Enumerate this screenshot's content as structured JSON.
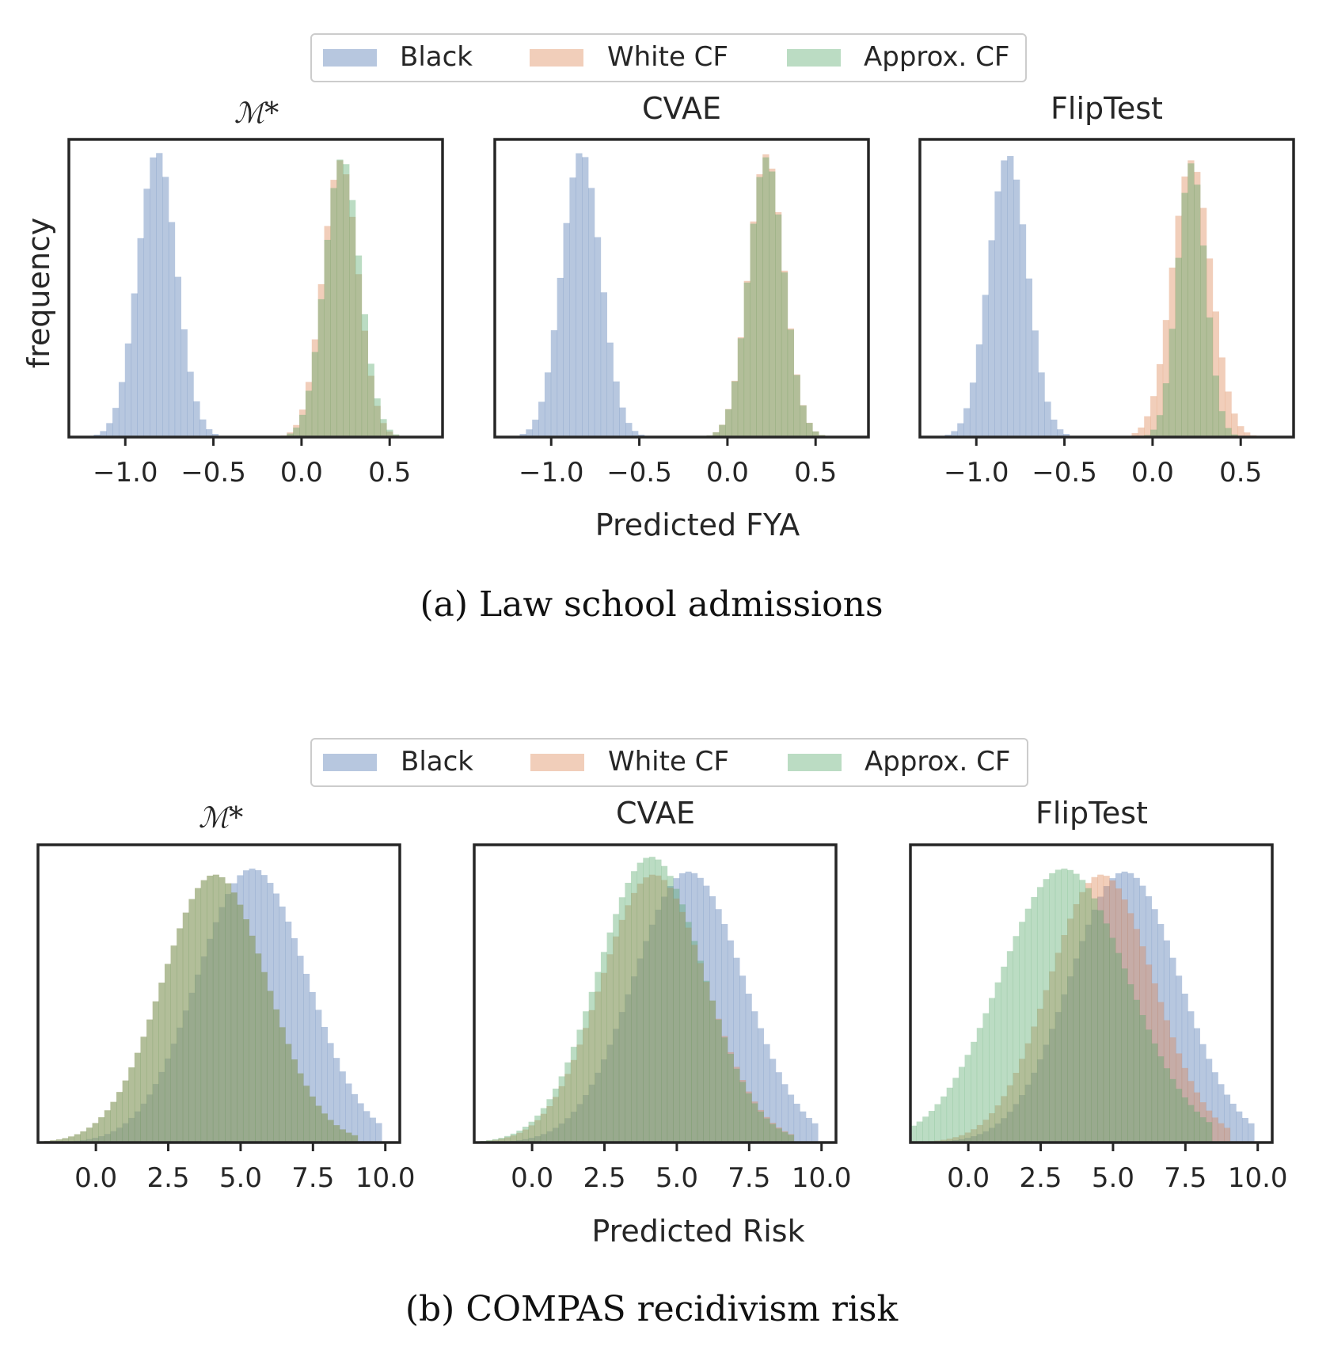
{
  "figure": {
    "colors": {
      "Black": "#4c72b0",
      "White CF": "#dd8452",
      "Approx. CF": "#55a868",
      "axis": "#262626",
      "legend_border": "#cccccc"
    },
    "y_axis_label": "frequency",
    "panels": [
      {
        "id": "a",
        "caption": "(a) Law school admissions",
        "x_axis_label": "Predicted FYA",
        "legend": [
          "Black",
          "White CF",
          "Approx. CF"
        ],
        "chart_data": [
          {
            "type": "histogram",
            "title": "ℳ*",
            "xlim": [
              -1.32,
              0.8
            ],
            "xticks": [
              -1.0,
              -0.5,
              0.0,
              0.5
            ],
            "xtick_labels": [
              "−1.0",
              "−0.5",
              "0.0",
              "0.5"
            ],
            "series": [
              {
                "name": "Black",
                "mean": -0.82,
                "sd": 0.11,
                "peak": 0.96,
                "range": [
                  -1.18,
                  -0.47
                ]
              },
              {
                "name": "White CF",
                "mean": 0.22,
                "sd": 0.1,
                "peak": 0.93,
                "range": [
                  -0.12,
                  0.62
                ]
              },
              {
                "name": "Approx. CF",
                "mean": 0.23,
                "sd": 0.1,
                "peak": 0.94,
                "range": [
                  -0.12,
                  0.6
                ]
              }
            ]
          },
          {
            "type": "histogram",
            "title": "CVAE",
            "xlim": [
              -1.32,
              0.8
            ],
            "xticks": [
              -1.0,
              -0.5,
              0.0,
              0.5
            ],
            "xtick_labels": [
              "−1.0",
              "−0.5",
              "0.0",
              "0.5"
            ],
            "series": [
              {
                "name": "Black",
                "mean": -0.83,
                "sd": 0.11,
                "peak": 0.96,
                "range": [
                  -1.18,
                  -0.48
                ]
              },
              {
                "name": "White CF",
                "mean": 0.22,
                "sd": 0.1,
                "peak": 0.95,
                "range": [
                  -0.12,
                  0.58
                ]
              },
              {
                "name": "Approx. CF",
                "mean": 0.22,
                "sd": 0.1,
                "peak": 0.94,
                "range": [
                  -0.12,
                  0.58
                ]
              }
            ]
          },
          {
            "type": "histogram",
            "title": "FlipTest",
            "xlim": [
              -1.32,
              0.8
            ],
            "xticks": [
              -1.0,
              -0.5,
              0.0,
              0.5
            ],
            "xtick_labels": [
              "−1.0",
              "−0.5",
              "0.0",
              "0.5"
            ],
            "series": [
              {
                "name": "Black",
                "mean": -0.82,
                "sd": 0.11,
                "peak": 0.95,
                "range": [
                  -1.18,
                  -0.48
                ]
              },
              {
                "name": "White CF",
                "mean": 0.22,
                "sd": 0.11,
                "peak": 0.93,
                "range": [
                  -0.12,
                  0.6
                ]
              },
              {
                "name": "Approx. CF",
                "mean": 0.22,
                "sd": 0.08,
                "peak": 0.92,
                "range": [
                  -0.05,
                  0.5
                ]
              }
            ]
          }
        ]
      },
      {
        "id": "b",
        "caption": "(b) COMPAS recidivism risk",
        "x_axis_label": "Predicted Risk",
        "legend": [
          "Black",
          "White CF",
          "Approx. CF"
        ],
        "chart_data": [
          {
            "type": "histogram",
            "title": "ℳ*",
            "xlim": [
              -2.0,
              10.5
            ],
            "xticks": [
              0.0,
              2.5,
              5.0,
              7.5,
              10.0
            ],
            "xtick_labels": [
              "0.0",
              "2.5",
              "5.0",
              "7.5",
              "10.0"
            ],
            "series": [
              {
                "name": "Black",
                "mean": 5.4,
                "sd": 1.9,
                "peak": 0.92,
                "range": [
                  -1.5,
                  9.8
                ]
              },
              {
                "name": "White CF",
                "mean": 4.1,
                "sd": 1.8,
                "peak": 0.9,
                "range": [
                  -2.0,
                  9.0
                ]
              },
              {
                "name": "Approx. CF",
                "mean": 4.1,
                "sd": 1.8,
                "peak": 0.9,
                "range": [
                  -2.0,
                  9.0
                ]
              }
            ]
          },
          {
            "type": "histogram",
            "title": "CVAE",
            "xlim": [
              -2.0,
              10.5
            ],
            "xticks": [
              0.0,
              2.5,
              5.0,
              7.5,
              10.0
            ],
            "xtick_labels": [
              "0.0",
              "2.5",
              "5.0",
              "7.5",
              "10.0"
            ],
            "series": [
              {
                "name": "Black",
                "mean": 5.4,
                "sd": 1.9,
                "peak": 0.91,
                "range": [
                  -1.5,
                  9.8
                ]
              },
              {
                "name": "White CF",
                "mean": 4.2,
                "sd": 1.8,
                "peak": 0.9,
                "range": [
                  -2.0,
                  9.0
                ]
              },
              {
                "name": "Approx. CF",
                "mean": 4.1,
                "sd": 1.8,
                "peak": 0.96,
                "range": [
                  -2.0,
                  9.0
                ]
              }
            ]
          },
          {
            "type": "histogram",
            "title": "FlipTest",
            "xlim": [
              -2.0,
              10.5
            ],
            "xticks": [
              0.0,
              2.5,
              5.0,
              7.5,
              10.0
            ],
            "xtick_labels": [
              "0.0",
              "2.5",
              "5.0",
              "7.5",
              "10.0"
            ],
            "series": [
              {
                "name": "Black",
                "mean": 5.4,
                "sd": 1.9,
                "peak": 0.91,
                "range": [
                  -1.5,
                  9.8
                ]
              },
              {
                "name": "White CF",
                "mean": 4.6,
                "sd": 1.8,
                "peak": 0.9,
                "range": [
                  -2.0,
                  9.0
                ]
              },
              {
                "name": "Approx. CF",
                "mean": 3.3,
                "sd": 2.2,
                "peak": 0.92,
                "range": [
                  -2.0,
                  8.5
                ]
              }
            ]
          }
        ]
      }
    ]
  }
}
